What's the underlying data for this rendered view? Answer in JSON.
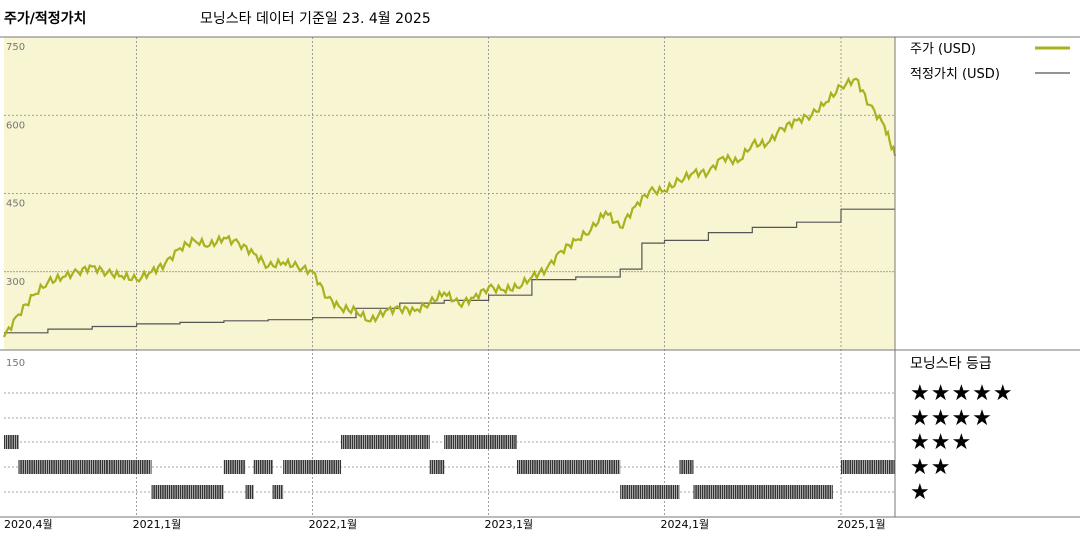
{
  "header": {
    "title": "주가/적정가치",
    "data_date": "모닝스타 데이터 기준일 23. 4월 2025"
  },
  "legend": {
    "price_label": "주가 (USD)",
    "fair_value_label": "적정가치 (USD)",
    "rating_title": "모닝스타 등급",
    "price_color": "#a8b21e",
    "fair_value_color": "#555555",
    "background_color": "#f8f5d2"
  },
  "chart_data": [
    {
      "type": "line",
      "title": "",
      "xlabel": "",
      "ylabel": "",
      "x_range": [
        "2020-04-01",
        "2025-04-23"
      ],
      "ylim": [
        150,
        750
      ],
      "y_ticks": [
        150,
        300,
        450,
        600,
        750
      ],
      "grid": true,
      "x_tick_labels": [
        {
          "label": "2020,4월",
          "date": "2020-04-01"
        },
        {
          "label": "2021,1월",
          "date": "2021-01-01"
        },
        {
          "label": "2022,1월",
          "date": "2022-01-01"
        },
        {
          "label": "2023,1월",
          "date": "2023-01-01"
        },
        {
          "label": "2024,1월",
          "date": "2024-01-01"
        },
        {
          "label": "2025,1월",
          "date": "2025-01-01"
        }
      ],
      "series": [
        {
          "name": "주가 (USD)",
          "x": [
            "2020-04-01",
            "2020-05-01",
            "2020-06-01",
            "2020-07-01",
            "2020-08-01",
            "2020-09-01",
            "2020-10-01",
            "2020-11-01",
            "2020-12-01",
            "2021-01-01",
            "2021-02-01",
            "2021-03-01",
            "2021-04-01",
            "2021-05-01",
            "2021-06-01",
            "2021-07-01",
            "2021-08-01",
            "2021-09-01",
            "2021-10-01",
            "2021-11-01",
            "2021-12-01",
            "2022-01-01",
            "2022-02-01",
            "2022-03-01",
            "2022-04-01",
            "2022-05-01",
            "2022-06-01",
            "2022-07-01",
            "2022-08-01",
            "2022-09-01",
            "2022-10-01",
            "2022-11-01",
            "2022-12-01",
            "2023-01-01",
            "2023-02-01",
            "2023-03-01",
            "2023-04-01",
            "2023-05-01",
            "2023-06-01",
            "2023-07-01",
            "2023-08-01",
            "2023-09-01",
            "2023-10-01",
            "2023-11-01",
            "2023-12-01",
            "2024-01-01",
            "2024-02-01",
            "2024-03-01",
            "2024-04-01",
            "2024-05-01",
            "2024-06-01",
            "2024-07-01",
            "2024-08-01",
            "2024-09-01",
            "2024-10-01",
            "2024-11-01",
            "2024-12-01",
            "2025-01-01",
            "2025-02-01",
            "2025-03-01",
            "2025-04-01",
            "2025-04-23"
          ],
          "y": [
            175,
            218,
            255,
            280,
            290,
            300,
            310,
            298,
            292,
            285,
            300,
            315,
            345,
            360,
            350,
            365,
            355,
            335,
            310,
            318,
            310,
            300,
            250,
            230,
            225,
            205,
            225,
            230,
            225,
            240,
            260,
            238,
            250,
            270,
            265,
            270,
            290,
            305,
            340,
            360,
            380,
            415,
            385,
            425,
            455,
            455,
            475,
            490,
            490,
            520,
            510,
            545,
            545,
            575,
            590,
            600,
            625,
            655,
            670,
            620,
            580,
            522
          ]
        },
        {
          "name": "적정가치 (USD)",
          "x": [
            "2020-04-01",
            "2020-07-01",
            "2020-10-01",
            "2021-01-01",
            "2021-04-01",
            "2021-07-01",
            "2021-10-01",
            "2022-01-01",
            "2022-04-01",
            "2022-07-01",
            "2022-10-01",
            "2023-01-01",
            "2023-04-01",
            "2023-07-01",
            "2023-10-01",
            "2023-11-15",
            "2024-01-01",
            "2024-04-01",
            "2024-07-01",
            "2024-10-01",
            "2025-01-01",
            "2025-04-23"
          ],
          "y": [
            183,
            190,
            195,
            200,
            203,
            206,
            208,
            212,
            230,
            240,
            245,
            255,
            285,
            290,
            305,
            355,
            360,
            375,
            385,
            395,
            420,
            420
          ]
        }
      ]
    },
    {
      "type": "heatmap",
      "title": "모닝스타 등급",
      "rating_levels": [
        "★★★★★",
        "★★★★",
        "★★★",
        "★★",
        "★"
      ],
      "periods": [
        {
          "start": "2020-04-01",
          "end": "2020-05-01",
          "stars": 3
        },
        {
          "start": "2020-05-01",
          "end": "2020-11-01",
          "stars": 2
        },
        {
          "start": "2020-11-01",
          "end": "2021-02-01",
          "stars": 2
        },
        {
          "start": "2021-02-01",
          "end": "2021-07-01",
          "stars": 1
        },
        {
          "start": "2021-07-01",
          "end": "2021-08-15",
          "stars": 2
        },
        {
          "start": "2021-08-15",
          "end": "2021-09-01",
          "stars": 1
        },
        {
          "start": "2021-09-01",
          "end": "2021-10-10",
          "stars": 2
        },
        {
          "start": "2021-10-10",
          "end": "2021-11-01",
          "stars": 1
        },
        {
          "start": "2021-11-01",
          "end": "2022-03-01",
          "stars": 2
        },
        {
          "start": "2022-03-01",
          "end": "2022-09-01",
          "stars": 3
        },
        {
          "start": "2022-09-01",
          "end": "2022-10-01",
          "stars": 2
        },
        {
          "start": "2022-10-01",
          "end": "2023-03-01",
          "stars": 3
        },
        {
          "start": "2023-03-01",
          "end": "2023-10-01",
          "stars": 2
        },
        {
          "start": "2023-10-01",
          "end": "2024-02-01",
          "stars": 1
        },
        {
          "start": "2024-02-01",
          "end": "2024-03-01",
          "stars": 2
        },
        {
          "start": "2024-03-01",
          "end": "2024-12-15",
          "stars": 1
        },
        {
          "start": "2025-01-01",
          "end": "2025-04-23",
          "stars": 2
        }
      ]
    }
  ]
}
